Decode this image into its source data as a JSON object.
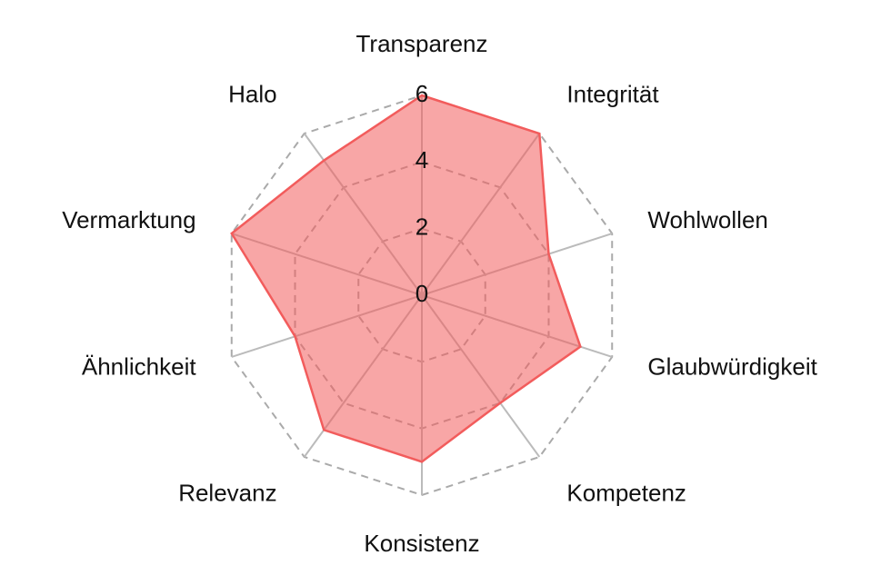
{
  "chart_data": {
    "type": "radar",
    "categories": [
      "Transparenz",
      "Integrität",
      "Wohlwollen",
      "Glaubwürdigkeit",
      "Kompetenz",
      "Konsistenz",
      "Relevanz",
      "Ähnlichkeit",
      "Vermarktung",
      "Halo"
    ],
    "values": [
      6,
      6,
      4,
      5,
      4,
      5,
      5,
      4,
      6,
      5
    ],
    "color": "#f25c5c",
    "rlim": [
      0,
      6
    ],
    "rticks": [
      0,
      2,
      4,
      6
    ],
    "grid": true
  }
}
